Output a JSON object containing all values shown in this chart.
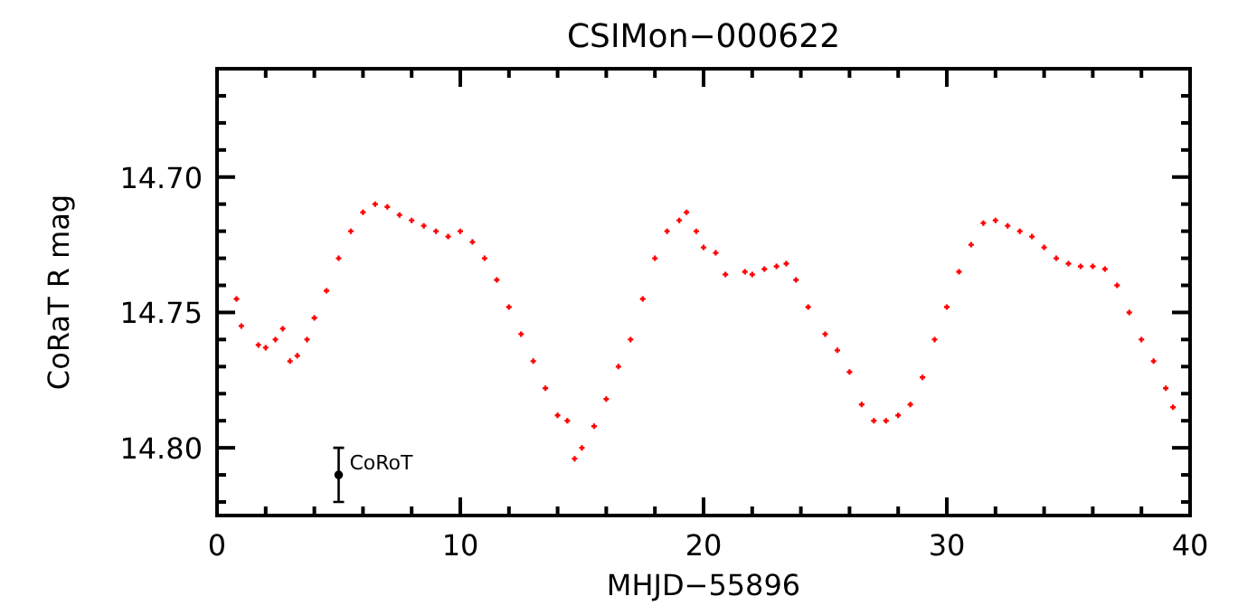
{
  "chart_data": {
    "type": "scatter",
    "title": "CSIMon−000622",
    "xlabel": "MHJD−55896",
    "ylabel": "CoRaT R mag",
    "marker": "cross",
    "xlim": [
      0,
      40
    ],
    "ylim": [
      14.825,
      14.66
    ],
    "xticks": [
      0,
      {
        "value": 2,
        "label": null
      },
      {
        "value": 4,
        "label": null
      },
      {
        "value": 6,
        "label": null
      },
      {
        "value": 8,
        "label": null
      },
      10,
      {
        "value": 12,
        "label": null
      },
      {
        "value": 14,
        "label": null
      },
      {
        "value": 16,
        "label": null
      },
      {
        "value": 18,
        "label": null
      },
      20,
      {
        "value": 22,
        "label": null
      },
      {
        "value": 24,
        "label": null
      },
      {
        "value": 26,
        "label": null
      },
      {
        "value": 28,
        "label": null
      },
      30,
      {
        "value": 32,
        "label": null
      },
      {
        "value": 34,
        "label": null
      },
      {
        "value": 36,
        "label": null
      },
      {
        "value": 38,
        "label": null
      },
      40
    ],
    "yticks": [
      {
        "value": 14.82,
        "label": null
      },
      {
        "value": 14.81,
        "label": null
      },
      {
        "value": 14.8,
        "label": "14.80"
      },
      {
        "value": 14.79,
        "label": null
      },
      {
        "value": 14.78,
        "label": null
      },
      {
        "value": 14.77,
        "label": null
      },
      {
        "value": 14.76,
        "label": null
      },
      {
        "value": 14.75,
        "label": "14.75"
      },
      {
        "value": 14.74,
        "label": null
      },
      {
        "value": 14.73,
        "label": null
      },
      {
        "value": 14.72,
        "label": null
      },
      {
        "value": 14.71,
        "label": null
      },
      {
        "value": 14.7,
        "label": "14.70"
      },
      {
        "value": 14.69,
        "label": null
      },
      {
        "value": 14.68,
        "label": null
      },
      {
        "value": 14.67,
        "label": null
      }
    ],
    "series": [
      {
        "color": "#ff0000",
        "x": [
          0.8,
          1.0,
          1.7,
          2.0,
          2.4,
          2.7,
          3.0,
          3.3,
          3.7,
          4.0,
          4.5,
          5.0,
          5.5,
          6.0,
          6.5,
          7.0,
          7.5,
          8.0,
          8.5,
          9.0,
          9.5,
          10.0,
          10.5,
          11.0,
          11.5,
          12.0,
          12.5,
          13.0,
          13.5,
          14.0,
          14.4,
          14.7,
          15.0,
          15.5,
          16.0,
          16.5,
          17.0,
          17.5,
          18.0,
          18.5,
          19.0,
          19.3,
          19.7,
          20.0,
          20.5,
          20.9,
          21.7,
          22.0,
          22.5,
          23.0,
          23.4,
          23.8,
          24.3,
          25.0,
          25.5,
          26.0,
          26.5,
          27.0,
          27.5,
          28.0,
          28.5,
          29.0,
          29.5,
          30.0,
          30.5,
          31.0,
          31.5,
          32.0,
          32.5,
          33.0,
          33.5,
          34.0,
          34.5,
          35.0,
          35.5,
          36.0,
          36.5,
          37.0,
          37.5,
          38.0,
          38.5,
          39.0,
          39.3
        ],
        "values": [
          14.745,
          14.755,
          14.762,
          14.763,
          14.76,
          14.756,
          14.768,
          14.766,
          14.76,
          14.752,
          14.742,
          14.73,
          14.72,
          14.713,
          14.71,
          14.711,
          14.714,
          14.716,
          14.718,
          14.72,
          14.722,
          14.72,
          14.724,
          14.73,
          14.738,
          14.748,
          14.758,
          14.768,
          14.778,
          14.788,
          14.79,
          14.804,
          14.8,
          14.792,
          14.782,
          14.77,
          14.76,
          14.745,
          14.73,
          14.72,
          14.716,
          14.713,
          14.72,
          14.726,
          14.728,
          14.736,
          14.735,
          14.736,
          14.734,
          14.733,
          14.732,
          14.738,
          14.748,
          14.758,
          14.764,
          14.772,
          14.784,
          14.79,
          14.79,
          14.788,
          14.784,
          14.774,
          14.76,
          14.748,
          14.735,
          14.725,
          14.717,
          14.716,
          14.718,
          14.72,
          14.722,
          14.726,
          14.73,
          14.732,
          14.733,
          14.733,
          14.734,
          14.74,
          14.75,
          14.76,
          14.768,
          14.778,
          14.785
        ]
      },
      {
        "name": "CoRoT",
        "color": "#000000",
        "marker": "circle",
        "x": [
          5
        ],
        "values": [
          14.81
        ],
        "errors": [
          0.01
        ]
      }
    ]
  }
}
